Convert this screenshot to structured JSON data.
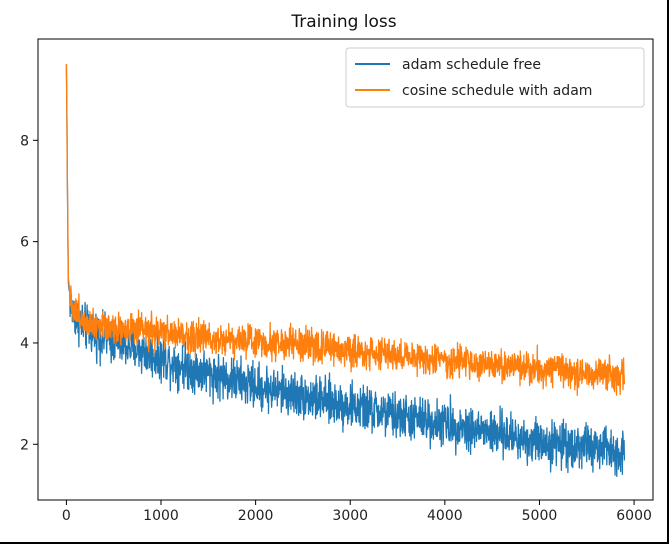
{
  "chart_data": {
    "type": "line",
    "title": "Training loss",
    "xlabel": "",
    "ylabel": "",
    "xlim": [
      -300,
      6200
    ],
    "ylim": [
      0.9,
      10.0
    ],
    "xticks": [
      0,
      1000,
      2000,
      3000,
      4000,
      5000,
      6000
    ],
    "yticks": [
      2,
      4,
      6,
      8
    ],
    "grid": false,
    "legend_position": "top-right",
    "series": [
      {
        "name": "adam schedule free",
        "color": "#1f77b4",
        "x": [
          0,
          20,
          50,
          100,
          200,
          400,
          700,
          1000,
          1500,
          2000,
          2500,
          3000,
          3500,
          3900,
          4300,
          4700,
          5000,
          5500,
          5900
        ],
        "y": [
          9.5,
          5.2,
          4.7,
          4.5,
          4.3,
          4.1,
          3.9,
          3.7,
          3.4,
          3.15,
          2.95,
          2.75,
          2.55,
          2.45,
          2.3,
          2.15,
          2.05,
          1.95,
          1.85
        ],
        "noise": 0.22
      },
      {
        "name": "cosine schedule with adam",
        "color": "#ff7f0e",
        "x": [
          0,
          20,
          50,
          100,
          200,
          400,
          700,
          1000,
          1500,
          2000,
          2500,
          3000,
          3500,
          4000,
          4500,
          5000,
          5500,
          5900
        ],
        "y": [
          9.5,
          5.3,
          4.8,
          4.6,
          4.45,
          4.35,
          4.25,
          4.2,
          4.1,
          4.05,
          3.95,
          3.85,
          3.75,
          3.65,
          3.55,
          3.5,
          3.4,
          3.35
        ],
        "noise": 0.16
      }
    ]
  }
}
